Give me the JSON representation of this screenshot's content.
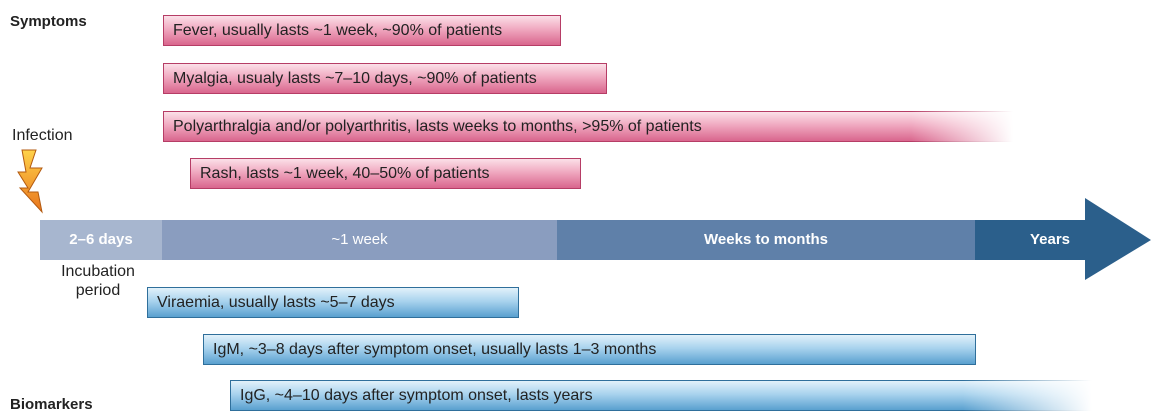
{
  "symptoms_label": "Symptoms",
  "infection_label": "Infection",
  "symptoms": [
    {
      "label": "Fever, usually lasts ~1 week, ~90% of patients"
    },
    {
      "label": "Myalgia, usualy lasts ~7–10 days, ~90% of patients"
    },
    {
      "label": "Polyarthralgia and/or polyarthritis, lasts weeks to months, >95% of patients"
    },
    {
      "label": "Rash, lasts ~1 week, 40–50% of patients"
    }
  ],
  "timeline": [
    {
      "label": "2–6 days"
    },
    {
      "label": "~1 week"
    },
    {
      "label": "Weeks to months"
    },
    {
      "label": "Years"
    }
  ],
  "incubation_label": "Incubation period",
  "biomarkers_label": "Biomarkers",
  "biomarkers": [
    {
      "label": "Viraemia, usually lasts ~5–7 days"
    },
    {
      "label": "IgM, ~3–8 days after symptom onset, usually lasts 1–3 months"
    },
    {
      "label": "IgG, ~4–10 days after symptom onset, lasts years"
    }
  ]
}
